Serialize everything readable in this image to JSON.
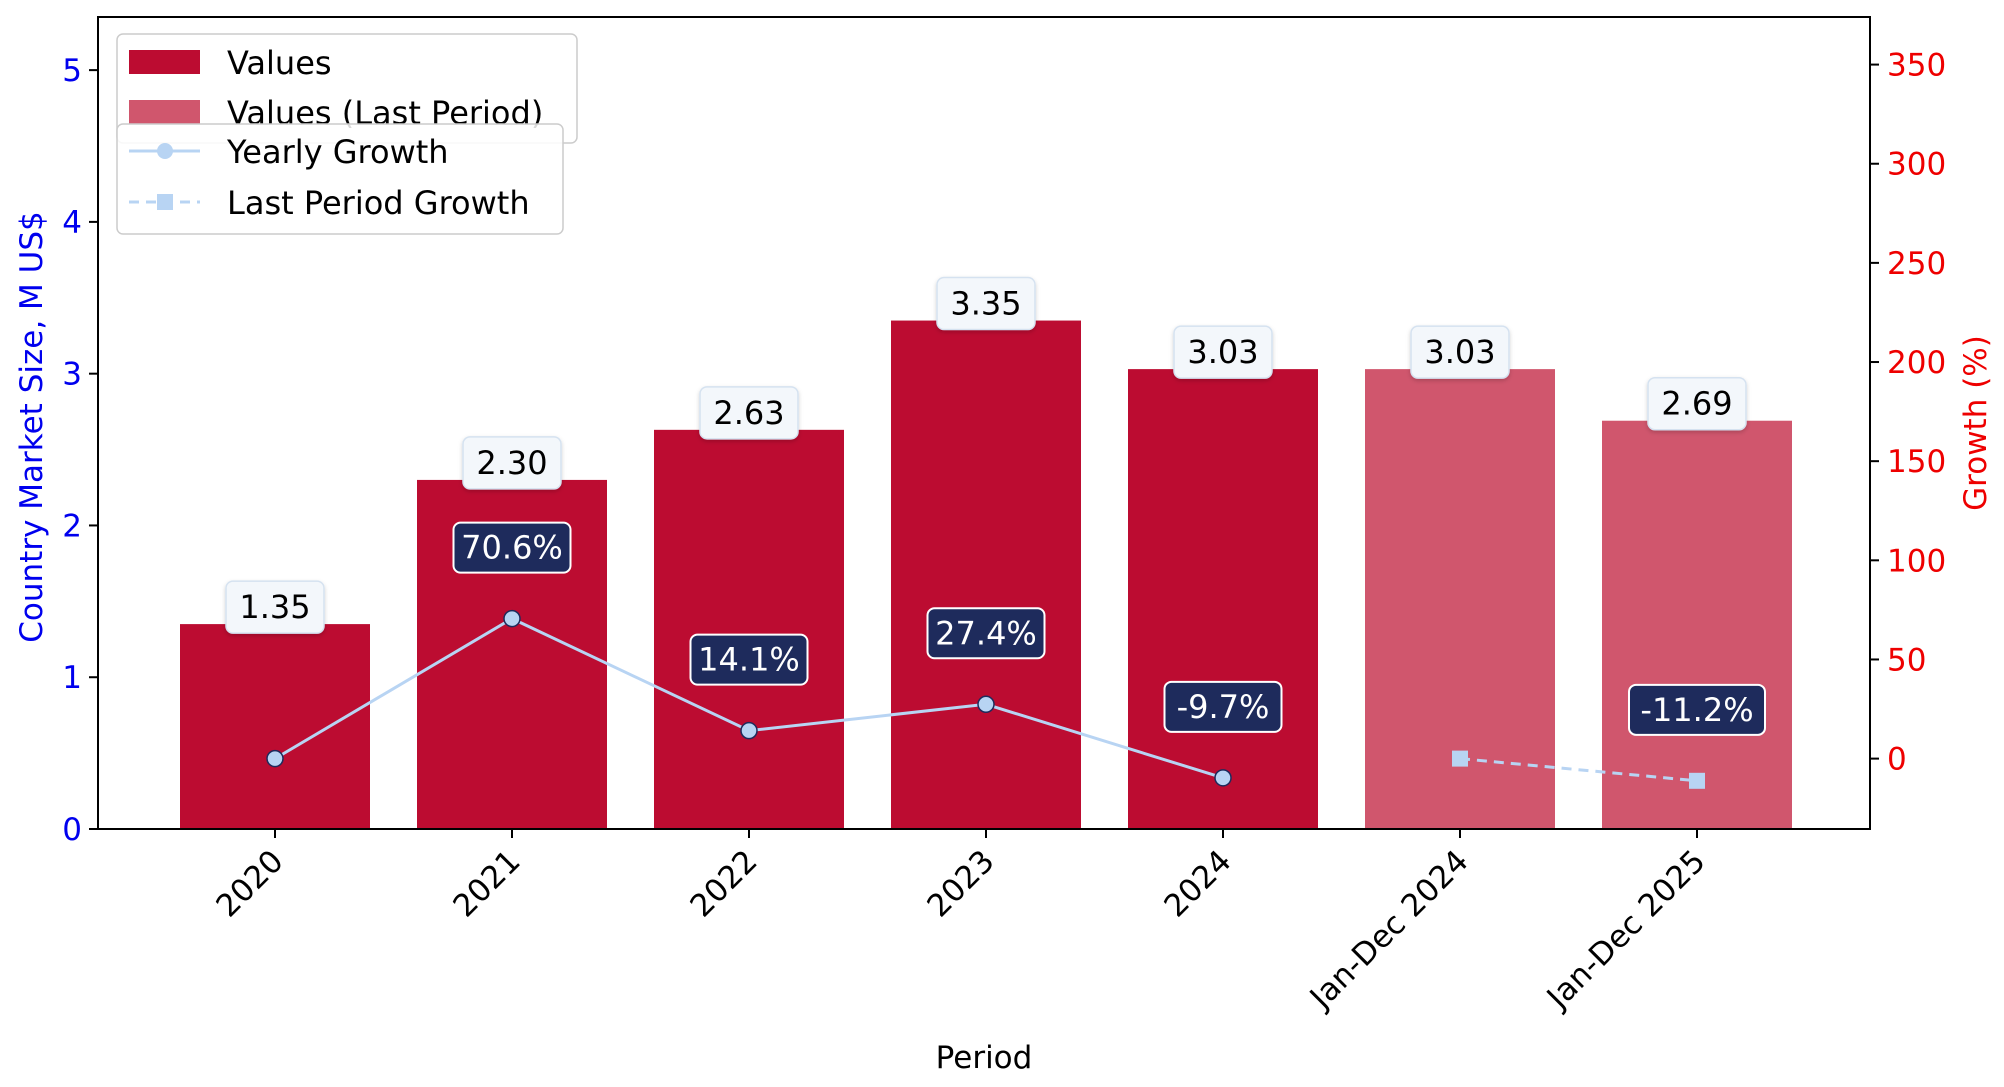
{
  "chart_data": {
    "type": "bar",
    "categories": [
      "2020",
      "2021",
      "2022",
      "2023",
      "2024",
      "Jan-Dec 2024",
      "Jan-Dec 2025"
    ],
    "series": [
      {
        "name": "Values",
        "kind": "bar",
        "axis": "left",
        "values": [
          1.35,
          2.3,
          2.63,
          3.35,
          3.03,
          null,
          null
        ],
        "labels": [
          "1.35",
          "2.30",
          "2.63",
          "3.35",
          "3.03",
          null,
          null
        ]
      },
      {
        "name": "Values (Last Period)",
        "kind": "bar",
        "axis": "left",
        "values": [
          null,
          null,
          null,
          null,
          null,
          3.03,
          2.69
        ],
        "labels": [
          null,
          null,
          null,
          null,
          null,
          "3.03",
          "2.69"
        ]
      },
      {
        "name": "Yearly Growth",
        "kind": "line",
        "axis": "right",
        "values": [
          0,
          70.6,
          14.1,
          27.4,
          -9.7,
          null,
          null
        ],
        "labels": [
          null,
          "70.6%",
          "14.1%",
          "27.4%",
          "-9.7%",
          null,
          null
        ]
      },
      {
        "name": "Last Period Growth",
        "kind": "line-dashed",
        "axis": "right",
        "values": [
          null,
          null,
          null,
          null,
          null,
          0,
          -11.2
        ],
        "labels": [
          null,
          null,
          null,
          null,
          null,
          null,
          "-11.2%"
        ]
      }
    ],
    "xlabel": "Period",
    "ylabel": "Country Market Size, M US$",
    "y2label": "Growth (%)",
    "ylim": [
      0,
      5.35
    ],
    "y2lim": [
      -35.5,
      374
    ],
    "yticks": [
      "0",
      "1",
      "2",
      "3",
      "4",
      "5"
    ],
    "y2ticks": [
      "0",
      "50",
      "100",
      "150",
      "200",
      "250",
      "300",
      "350"
    ],
    "grid": false,
    "legend_placement": "top-left",
    "colors": {
      "bar": "#bc0c31",
      "bar_last": "#d0566d",
      "line": "#b8d4f3",
      "label_box": "#1e2b5c",
      "left_axis": "#0000ee",
      "right_axis": "#ee0000"
    }
  }
}
